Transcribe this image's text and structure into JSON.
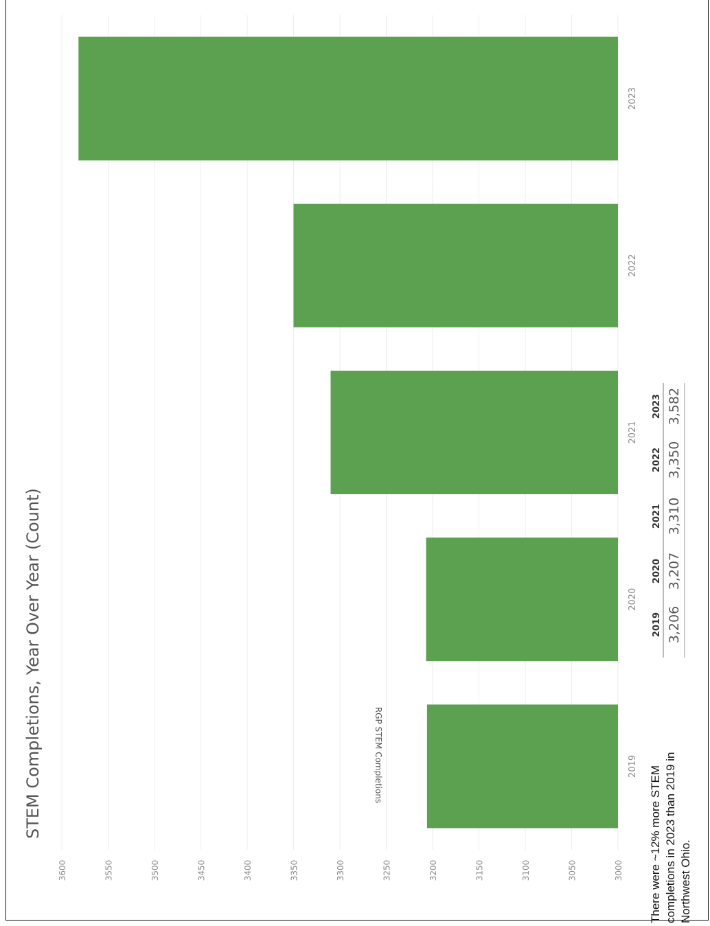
{
  "chart_data": {
    "type": "bar",
    "title": "STEM Completions, Year Over Year (Count)",
    "ylabel": "RGP STEM Completions",
    "xlabel": "",
    "categories": [
      "2019",
      "2020",
      "2021",
      "2022",
      "2023"
    ],
    "values": [
      3206,
      3207,
      3310,
      3350,
      3582
    ],
    "ylim": [
      3000,
      3600
    ],
    "yticks": [
      3000,
      3050,
      3100,
      3150,
      3200,
      3250,
      3300,
      3350,
      3400,
      3450,
      3500,
      3550,
      3600
    ],
    "grid": true,
    "bar_color": "#5ca14f",
    "orientation": "rotated-90-clockwise"
  },
  "summary_table": {
    "headers": [
      "2019",
      "2020",
      "2021",
      "2022",
      "2023"
    ],
    "values": [
      "3,206",
      "3,207",
      "3,310",
      "3,350",
      "3,582"
    ]
  },
  "annotation": {
    "lines": [
      "There were ~12% more STEM",
      "completions in 2023 than 2019 in",
      "Northwest Ohio."
    ]
  }
}
